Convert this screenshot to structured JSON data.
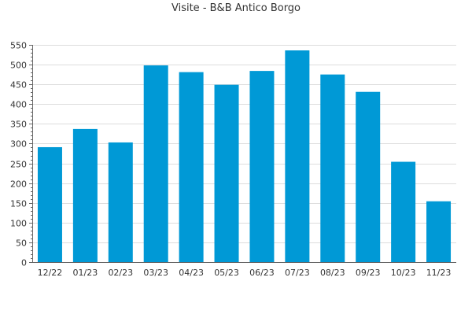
{
  "chart_data": {
    "type": "bar",
    "title": "Visite - B&B Antico Borgo",
    "xlabel": "",
    "ylabel": "",
    "categories": [
      "12/22",
      "01/23",
      "02/23",
      "03/23",
      "04/23",
      "05/23",
      "06/23",
      "07/23",
      "08/23",
      "09/23",
      "10/23",
      "11/23"
    ],
    "values": [
      291,
      337,
      303,
      498,
      481,
      449,
      484,
      536,
      475,
      431,
      254,
      154
    ],
    "ylim": [
      0,
      550
    ],
    "yticks": [
      0,
      50,
      100,
      150,
      200,
      250,
      300,
      350,
      400,
      450,
      500,
      550
    ],
    "grid": true,
    "legend": "none",
    "colors": {
      "bar": "#0099d6",
      "grid": "#dddddd",
      "axis": "#666666",
      "text": "#333333"
    }
  }
}
